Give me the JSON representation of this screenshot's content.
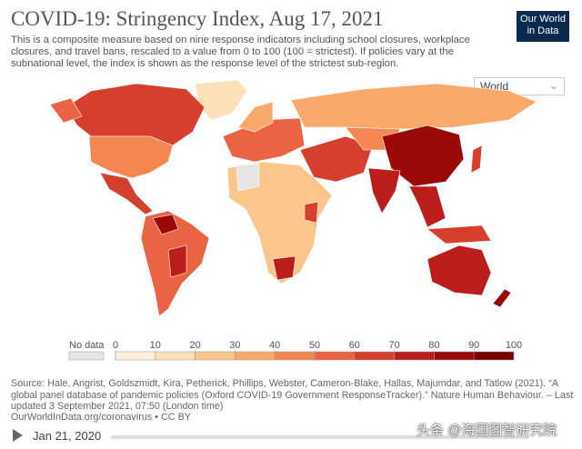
{
  "header": {
    "title": "COVID-19: Stringency Index, Aug 17, 2021",
    "subtitle": "This is a composite measure based on nine response indicators including school closures, workplace closures, and travel bans, rescaled to a value from 0 to 100 (100 = strictest). If policies vary at the subnational level, the index is shown as the response level of the strictest sub-region.",
    "logo": [
      "Our World",
      "in Data"
    ]
  },
  "selector": "World",
  "legend": {
    "no_data_label": "No data",
    "no_data_color": "#e6e6e6",
    "ticks": [
      0,
      10,
      20,
      30,
      40,
      50,
      60,
      70,
      80,
      90,
      100
    ],
    "colors": [
      "#fdf1dc",
      "#fce0b8",
      "#fbc68c",
      "#f9a96c",
      "#f48652",
      "#ea6343",
      "#d63f2d",
      "#bb1d1a",
      "#9b0909",
      "#780000"
    ]
  },
  "source": "Source: Hale, Angrist, Goldszmidt, Kira, Petherick, Phillips, Webster, Cameron-Blake, Hallas, Majumdar, and Tatlow (2021). “A global panel database of pandemic policies (Oxford COVID-19 Government ResponseTracker).” Nature Human Behaviour. – Last updated 3 September 2021, 07:50 (London time)",
  "source_link": "OurWorldInData.org/coronavirus • CC BY",
  "timeline": {
    "start": "Jan 21, 2020"
  },
  "watermark": "头条 @海国图智研究院"
}
